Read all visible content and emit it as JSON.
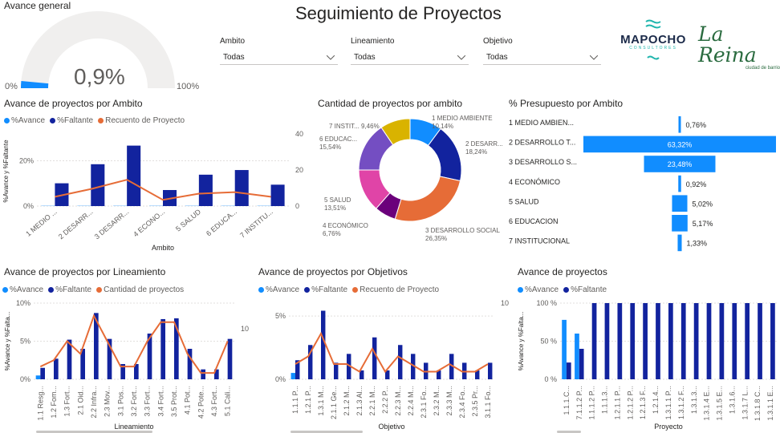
{
  "page_title": "Seguimiento de Proyectos",
  "colors": {
    "avance": "#118dff",
    "faltante": "#12239e",
    "recuento": "#e66c37",
    "gauge_bg": "#f0efee"
  },
  "gauge": {
    "title": "Avance general",
    "value_label": "0,9%",
    "min_label": "0%",
    "max_label": "100%",
    "value_fraction": 0.009
  },
  "filters": [
    {
      "label": "Ambito",
      "value": "Todas"
    },
    {
      "label": "Lineamiento",
      "value": "Todas"
    },
    {
      "label": "Objetivo",
      "value": "Todas"
    }
  ],
  "logos": {
    "mapocho_name": "MAPOCHO",
    "mapocho_sub": "CONSULTORES",
    "lareina_name": "La Reina",
    "lareina_sub": "ciudad de barrio"
  },
  "chart_data": [
    {
      "id": "ambito",
      "type": "bar",
      "title": "Avance de proyectos por Ambito",
      "legend": [
        "%Avance",
        "%Faltante",
        "Recuento de Proyecto"
      ],
      "xlabel": "Ambito",
      "ylabel": "%Avance y %Faltante",
      "categories": [
        "1 MEDIO ...",
        "2 DESARR...",
        "3 DESARR...",
        "4 ECONO...",
        "5 SALUD",
        "6 EDUCA...",
        "7 INSTITU..."
      ],
      "series": [
        {
          "name": "%Avance",
          "values": [
            0.1,
            0.1,
            0.1,
            0.1,
            0.1,
            0.1,
            0.1
          ]
        },
        {
          "name": "%Faltante",
          "values": [
            9.8,
            18.0,
            26.0,
            6.9,
            13.5,
            15.5,
            9.2
          ]
        },
        {
          "name": "Recuento de Proyecto",
          "values": [
            6,
            11,
            17,
            4,
            8,
            9,
            6
          ]
        }
      ],
      "yticks": [
        "0%",
        "20%"
      ],
      "y2ticks": [
        "0",
        "20",
        "40"
      ],
      "ylim": [
        0,
        30
      ],
      "y2lim": [
        0,
        45
      ]
    },
    {
      "id": "donut",
      "type": "pie",
      "title": "Cantidad de proyectos por ambito",
      "slices": [
        {
          "name": "1 MEDIO AMBIENTE",
          "pct": "10,14%",
          "value": 10.14,
          "color": "#118dff"
        },
        {
          "name": "2 DESARR...",
          "pct": "18,24%",
          "value": 18.24,
          "color": "#12239e"
        },
        {
          "name": "3 DESARROLLO SOCIAL",
          "pct": "26,35%",
          "value": 26.35,
          "color": "#e66c37"
        },
        {
          "name": "4 ECONÓMICO",
          "pct": "6,76%",
          "value": 6.76,
          "color": "#6b007b"
        },
        {
          "name": "5 SALUD",
          "pct": "13,51%",
          "value": 13.51,
          "color": "#e044a7"
        },
        {
          "name": "6 EDUCAC...",
          "pct": "15,54%",
          "value": 15.54,
          "color": "#744ec2"
        },
        {
          "name": "7 INSTIT...",
          "pct": "9,46%",
          "value": 9.46,
          "color": "#d9b300"
        }
      ]
    },
    {
      "id": "presupuesto",
      "type": "bar",
      "title": "% Presupuesto por Ambito",
      "categories": [
        "1 MEDIO AMBIEN...",
        "2 DESARROLLO T...",
        "3 DESARROLLO S...",
        "4 ECONÓMICO",
        "5 SALUD",
        "6 EDUCACION",
        "7 INSTITUCIONAL"
      ],
      "values": [
        0.76,
        63.32,
        23.48,
        0.92,
        5.02,
        5.17,
        1.33
      ],
      "labels": [
        "0,76%",
        "63,32%",
        "23,48%",
        "0,92%",
        "5,02%",
        "5,17%",
        "1,33%"
      ]
    },
    {
      "id": "lineamiento",
      "type": "bar",
      "title": "Avance de proyectos por Lineamiento",
      "legend": [
        "%Avance",
        "%Faltante",
        "Cantidad de proyectos"
      ],
      "xlabel": "Lineamiento",
      "ylabel": "%Avance y %Falta...",
      "categories": [
        "1.1 Resg...",
        "1.2 Fom...",
        "1.3 Fort...",
        "2.1 Oid...",
        "2.2 Infra...",
        "2.3 Mov...",
        "3.1 Pos...",
        "3.2 Fort...",
        "3.3 Fort...",
        "3.4 Fort...",
        "3.5 Prot...",
        "4.1 Pot...",
        "4.2 Pote...",
        "4.3 Fort...",
        "5.1 Cali..."
      ],
      "series": [
        {
          "name": "%Avance",
          "values": [
            0.5,
            0,
            0,
            0,
            0,
            0,
            0,
            0,
            0,
            0,
            0,
            0,
            0,
            0,
            0
          ]
        },
        {
          "name": "%Faltante",
          "values": [
            1.5,
            2.7,
            5.2,
            4.0,
            8.7,
            5.3,
            2.0,
            2.0,
            6.0,
            7.9,
            8.0,
            4.0,
            1.3,
            1.3,
            5.3
          ]
        },
        {
          "name": "Cantidad de proyectos",
          "values": [
            2,
            3,
            6,
            4,
            10,
            6,
            2,
            2,
            6,
            9,
            9,
            4,
            1,
            1,
            6
          ]
        }
      ],
      "yticks": [
        "0%",
        "5%",
        "10%"
      ],
      "y2ticks": [
        "10"
      ],
      "ylim": [
        0,
        10
      ],
      "y2lim": [
        0,
        12
      ]
    },
    {
      "id": "objetivos",
      "type": "bar",
      "title": "Avance de proyectos por Objetivos",
      "legend": [
        "%Avance",
        "%Faltante",
        "Recuento de Proyecto"
      ],
      "xlabel": "Objetivo",
      "categories": [
        "1.1.1 P...",
        "1.2.1 P...",
        "1.3.1 M...",
        "2.1.1 Ge...",
        "2.1.2 M...",
        "2.1.3 Al...",
        "2.2.1 M...",
        "2.2.2 P...",
        "2.2.3 M...",
        "2.2.4 M...",
        "2.3.1 Fo...",
        "2.3.2 M...",
        "2.3.3 M...",
        "2.3.4 Fo...",
        "2.3.5 Pr...",
        "3.1.1 Fo..."
      ],
      "series": [
        {
          "name": "%Avance",
          "values": [
            0.5,
            0,
            0,
            0,
            0,
            0,
            0,
            0,
            0,
            0,
            0,
            0,
            0,
            0,
            0,
            0
          ]
        },
        {
          "name": "%Faltante",
          "values": [
            1.5,
            2.7,
            5.4,
            1.3,
            2.0,
            0.7,
            3.3,
            0.7,
            2.7,
            2.0,
            1.3,
            0.7,
            2.0,
            1.3,
            0.7,
            1.3
          ]
        },
        {
          "name": "Recuento de Proyecto",
          "values": [
            2,
            3,
            6,
            2,
            2,
            1,
            4,
            1,
            3,
            2,
            1,
            1,
            2,
            1,
            1,
            2
          ]
        }
      ],
      "yticks": [
        "0%",
        "5%"
      ],
      "y2ticks": [
        "10"
      ],
      "ylim": [
        0,
        6
      ],
      "y2lim": [
        0,
        10
      ]
    },
    {
      "id": "proyectos",
      "type": "bar",
      "title": "Avance de proyectos",
      "legend": [
        "%Avance",
        "%Faltante"
      ],
      "xlabel": "Proyecto",
      "ylabel": "%Avance y %Falta...",
      "categories": [
        "1.1.1.C...",
        "7.1.1.2 P...",
        "1.1.1.2 P...",
        "1.1.1.3...",
        "1.2.1.1 P...",
        "1.2.1.2 P...",
        "1.2.1.3 F...",
        "1.2.1.4...",
        "1.3.1.1 P...",
        "1.3.1.2 F...",
        "1.3.1.3...",
        "1.3.1.4 E...",
        "1.3.1.5 E...",
        "1.3.1.6...",
        "1.3.1.7 L...",
        "1.3.1.8 C...",
        "1.3.1.1 E..."
      ],
      "series": [
        {
          "name": "%Avance",
          "values": [
            78,
            60,
            0,
            0,
            0,
            0,
            0,
            0,
            0,
            0,
            0,
            0,
            0,
            0,
            0,
            0,
            0
          ]
        },
        {
          "name": "%Faltante",
          "values": [
            22,
            40,
            100,
            100,
            100,
            100,
            100,
            100,
            100,
            100,
            100,
            100,
            100,
            100,
            100,
            100,
            100
          ]
        }
      ],
      "yticks": [
        "0 %",
        "50 %",
        "100 %"
      ],
      "ylim": [
        0,
        100
      ]
    }
  ]
}
